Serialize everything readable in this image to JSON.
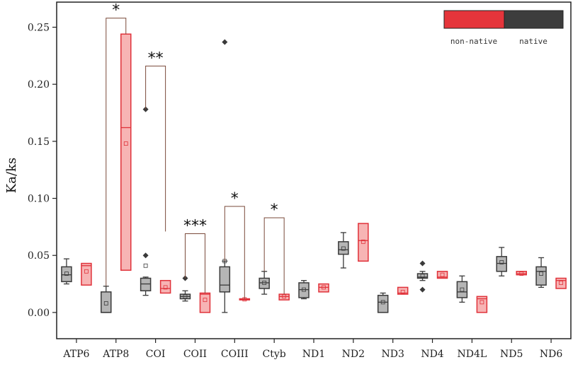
{
  "chart_data": {
    "type": "box",
    "ylabel": "Ka/ks",
    "xlabel": "",
    "ylim": [
      -0.023,
      0.272
    ],
    "yticks": [
      "0.00",
      "0.05",
      "0.10",
      "0.15",
      "0.20",
      "0.25"
    ],
    "ytick_values": [
      0,
      0.05,
      0.1,
      0.15,
      0.2,
      0.25
    ],
    "categories": [
      "ATP6",
      "ATP8",
      "COI",
      "COII",
      "COIII",
      "Ctyb",
      "ND1",
      "ND2",
      "ND3",
      "ND4",
      "ND4L",
      "ND5",
      "ND6"
    ],
    "legend": {
      "position": "top-right",
      "entries": [
        "non-native",
        "native"
      ]
    },
    "colors": {
      "native_fill": "#b5b5b5",
      "native_edge": "#3a3a3a",
      "nonnative_fill": "#f7b4b4",
      "nonnative_edge": "#e0323a",
      "legend_native": "#3d3d3d",
      "legend_nonnative": "#e5353b",
      "bracket": "#7a4a3a"
    },
    "series": [
      {
        "name": "native",
        "boxes": [
          {
            "q1": 0.027,
            "median": 0.033,
            "q3": 0.04,
            "mean": 0.034,
            "wlo": 0.025,
            "whi": 0.047,
            "outliers": []
          },
          {
            "q1": 0.0,
            "median": 0.0,
            "q3": 0.018,
            "mean": 0.008,
            "wlo": 0.0,
            "whi": 0.023,
            "outliers": []
          },
          {
            "q1": 0.019,
            "median": 0.025,
            "q3": 0.03,
            "mean": 0.041,
            "wlo": 0.015,
            "whi": 0.031,
            "outliers": [
              0.05,
              0.178
            ]
          },
          {
            "q1": 0.012,
            "median": 0.014,
            "q3": 0.016,
            "mean": 0.014,
            "wlo": 0.01,
            "whi": 0.019,
            "outliers": [
              0.03
            ]
          },
          {
            "q1": 0.018,
            "median": 0.024,
            "q3": 0.04,
            "mean": 0.045,
            "wlo": 0.0,
            "whi": 0.045,
            "outliers": [
              0.237
            ]
          },
          {
            "q1": 0.021,
            "median": 0.026,
            "q3": 0.03,
            "mean": 0.026,
            "wlo": 0.016,
            "whi": 0.036,
            "outliers": []
          },
          {
            "q1": 0.013,
            "median": 0.02,
            "q3": 0.026,
            "mean": 0.02,
            "wlo": 0.012,
            "whi": 0.028,
            "outliers": []
          },
          {
            "q1": 0.051,
            "median": 0.055,
            "q3": 0.062,
            "mean": 0.056,
            "wlo": 0.039,
            "whi": 0.07,
            "outliers": []
          },
          {
            "q1": 0.0,
            "median": 0.009,
            "q3": 0.015,
            "mean": 0.009,
            "wlo": 0.0,
            "whi": 0.017,
            "outliers": []
          },
          {
            "q1": 0.03,
            "median": 0.031,
            "q3": 0.034,
            "mean": 0.032,
            "wlo": 0.028,
            "whi": 0.036,
            "outliers": [
              0.043,
              0.02
            ]
          },
          {
            "q1": 0.013,
            "median": 0.018,
            "q3": 0.027,
            "mean": 0.02,
            "wlo": 0.009,
            "whi": 0.032,
            "outliers": []
          },
          {
            "q1": 0.036,
            "median": 0.043,
            "q3": 0.049,
            "mean": 0.044,
            "wlo": 0.032,
            "whi": 0.057,
            "outliers": []
          },
          {
            "q1": 0.024,
            "median": 0.036,
            "q3": 0.04,
            "mean": 0.034,
            "wlo": 0.022,
            "whi": 0.048,
            "outliers": []
          }
        ]
      },
      {
        "name": "non-native",
        "boxes": [
          {
            "q1": 0.024,
            "median": 0.041,
            "q3": 0.043,
            "mean": 0.036
          },
          {
            "q1": 0.037,
            "median": 0.162,
            "q3": 0.244,
            "mean": 0.148
          },
          {
            "q1": 0.017,
            "median": 0.021,
            "q3": 0.028,
            "mean": 0.022
          },
          {
            "q1": 0.0,
            "median": 0.016,
            "q3": 0.017,
            "mean": 0.011
          },
          {
            "q1": 0.011,
            "median": 0.0115,
            "q3": 0.012,
            "mean": 0.0115
          },
          {
            "q1": 0.011,
            "median": 0.014,
            "q3": 0.016,
            "mean": 0.014
          },
          {
            "q1": 0.018,
            "median": 0.022,
            "q3": 0.025,
            "mean": 0.022
          },
          {
            "q1": 0.045,
            "median": 0.063,
            "q3": 0.078,
            "mean": 0.062
          },
          {
            "q1": 0.016,
            "median": 0.017,
            "q3": 0.022,
            "mean": 0.018
          },
          {
            "q1": 0.03,
            "median": 0.031,
            "q3": 0.036,
            "mean": 0.033
          },
          {
            "q1": 0.0,
            "median": 0.012,
            "q3": 0.014,
            "mean": 0.009
          },
          {
            "q1": 0.033,
            "median": 0.034,
            "q3": 0.036,
            "mean": 0.034
          },
          {
            "q1": 0.021,
            "median": 0.028,
            "q3": 0.03,
            "mean": 0.026
          }
        ]
      }
    ],
    "significance": [
      {
        "category": "ATP8",
        "label": "*",
        "top": 0.258,
        "left_to": 0.023,
        "right_to": 0.244
      },
      {
        "category": "COI",
        "label": "**",
        "top": 0.216,
        "left_to": 0.178,
        "right_to": 0.071
      },
      {
        "category": "COII",
        "label": "***",
        "top": 0.069,
        "left_to": 0.03,
        "right_to": 0.017
      },
      {
        "category": "COIII",
        "label": "*",
        "top": 0.093,
        "left_to": 0.045,
        "right_to": 0.012
      },
      {
        "category": "Ctyb",
        "label": "*",
        "top": 0.083,
        "left_to": 0.036,
        "right_to": 0.016
      }
    ]
  }
}
